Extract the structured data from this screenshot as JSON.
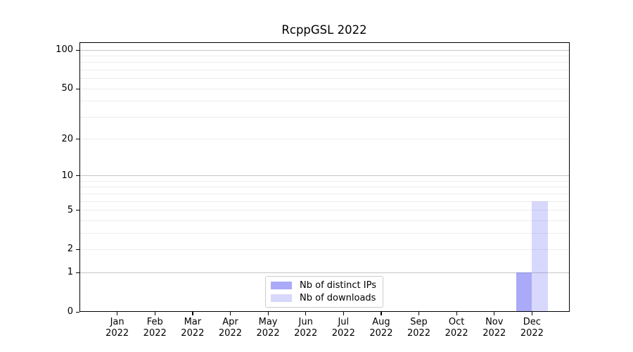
{
  "title": "RcppGSL 2022",
  "colors": {
    "bar_base": "#6464f2",
    "grid_major": "#c6c6c6",
    "grid_minor": "#ededed",
    "axis": "#000000",
    "background": "#ffffff",
    "legend_border": "#cccccc"
  },
  "chart_data": {
    "type": "bar",
    "title": "RcppGSL 2022",
    "categories": [
      "Jan 2022",
      "Feb 2022",
      "Mar 2022",
      "Apr 2022",
      "May 2022",
      "Jun 2022",
      "Jul 2022",
      "Aug 2022",
      "Sep 2022",
      "Oct 2022",
      "Nov 2022",
      "Dec 2022"
    ],
    "series": [
      {
        "name": "Nb of distinct IPs",
        "color": "#6464f2",
        "alpha": 0.55,
        "values": [
          0,
          0,
          0,
          0,
          0,
          0,
          0,
          0,
          0,
          0,
          0,
          1
        ]
      },
      {
        "name": "Nb of downloads",
        "color": "#6464f2",
        "alpha": 0.25,
        "values": [
          0,
          0,
          0,
          0,
          0,
          0,
          0,
          0,
          0,
          0,
          0,
          6
        ]
      }
    ],
    "xlabel": "",
    "ylabel": "",
    "yscale": "log1p",
    "ylim": [
      0,
      115
    ],
    "yticks_labeled": [
      0,
      1,
      2,
      5,
      10,
      20,
      50,
      100
    ],
    "grid_major_at": [
      1,
      10,
      100
    ],
    "grid_minor_at": [
      2,
      3,
      4,
      5,
      6,
      7,
      8,
      9,
      20,
      30,
      40,
      50,
      60,
      70,
      80,
      90
    ],
    "grid": true,
    "legend_position": "lower center"
  }
}
